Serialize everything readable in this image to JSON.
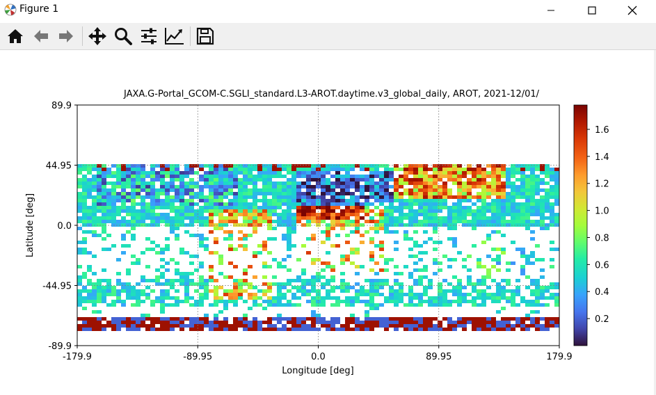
{
  "window": {
    "title": "Figure 1"
  },
  "toolbar": {
    "buttons": [
      {
        "name": "home",
        "icon": "home-icon"
      },
      {
        "name": "back",
        "icon": "arrow-left-icon"
      },
      {
        "name": "forward",
        "icon": "arrow-right-icon"
      },
      {
        "name": "pan",
        "icon": "move-icon"
      },
      {
        "name": "zoom",
        "icon": "magnifier-icon"
      },
      {
        "name": "subplots",
        "icon": "sliders-icon"
      },
      {
        "name": "edit-curves",
        "icon": "line-chart-icon"
      },
      {
        "name": "save",
        "icon": "floppy-disk-icon"
      }
    ]
  },
  "plot": {
    "title": "JAXA.G-Portal_GCOM-C.SGLI_standard.L3-AROT.daytime.v3_global_daily, AROT, 2021-12/01/",
    "xlabel": "Longitude [deg]",
    "ylabel": "Latitude [deg]"
  },
  "chart_data": {
    "type": "heatmap",
    "title": "JAXA.G-Portal_GCOM-C.SGLI_standard.L3-AROT.daytime.v3_global_daily, AROT, 2021-12/01/",
    "xlabel": "Longitude [deg]",
    "ylabel": "Latitude [deg]",
    "xlim": [
      -179.9,
      179.9
    ],
    "ylim": [
      -89.9,
      89.9
    ],
    "xticks": [
      "-179.9",
      "-89.95",
      "0.0",
      "89.95",
      "179.9"
    ],
    "yticks": [
      "89.9",
      "44.95",
      "0.0",
      "-44.95",
      "-89.9"
    ],
    "grid": true,
    "colormap": "turbo",
    "colorbar": {
      "range": [
        0.0,
        1.78
      ],
      "ticks": [
        "0.2",
        "0.4",
        "0.6",
        "0.8",
        "1.0",
        "1.2",
        "1.4",
        "1.6"
      ]
    },
    "data_extent_lat": [
      -78,
      45
    ]
  }
}
